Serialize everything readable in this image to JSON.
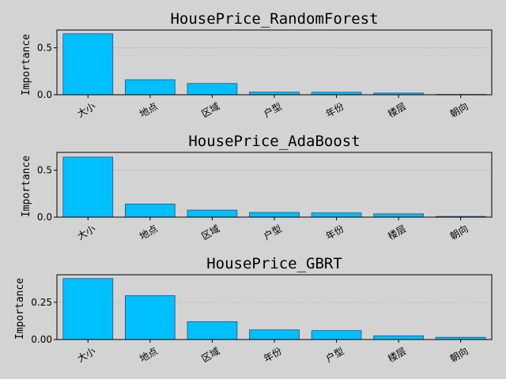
{
  "chart_data": [
    {
      "type": "bar",
      "title": "HousePrice_RandomForest",
      "ylabel": "Importance",
      "xlabel": "",
      "categories": [
        "大小",
        "地点",
        "区域",
        "户型",
        "年份",
        "楼层",
        "朝向"
      ],
      "values": [
        0.65,
        0.16,
        0.12,
        0.028,
        0.027,
        0.018,
        0.004
      ],
      "ylim": [
        0,
        0.69
      ],
      "yticks": [
        0,
        0.5
      ],
      "ytick_labels": [
        "0.0",
        "0.5"
      ],
      "grid": "y-dotted",
      "bar_color": "#00bfff"
    },
    {
      "type": "bar",
      "title": "HousePrice_AdaBoost",
      "ylabel": "Importance",
      "xlabel": "",
      "categories": [
        "大小",
        "地点",
        "区域",
        "户型",
        "年份",
        "楼层",
        "朝向"
      ],
      "values": [
        0.64,
        0.14,
        0.075,
        0.05,
        0.045,
        0.035,
        0.008
      ],
      "ylim": [
        0,
        0.69
      ],
      "yticks": [
        0,
        0.5
      ],
      "ytick_labels": [
        "0.0",
        "0.5"
      ],
      "grid": "y-dotted",
      "bar_color": "#00bfff"
    },
    {
      "type": "bar",
      "title": "HousePrice_GBRT",
      "ylabel": "Importance",
      "xlabel": "",
      "categories": [
        "大小",
        "地点",
        "区域",
        "年份",
        "户型",
        "楼层",
        "朝向"
      ],
      "values": [
        0.41,
        0.295,
        0.12,
        0.065,
        0.06,
        0.025,
        0.015
      ],
      "ylim": [
        0,
        0.435
      ],
      "yticks": [
        0,
        0.25
      ],
      "ytick_labels": [
        "0.00",
        "0.25"
      ],
      "grid": "y-dotted",
      "bar_color": "#00bfff"
    }
  ]
}
